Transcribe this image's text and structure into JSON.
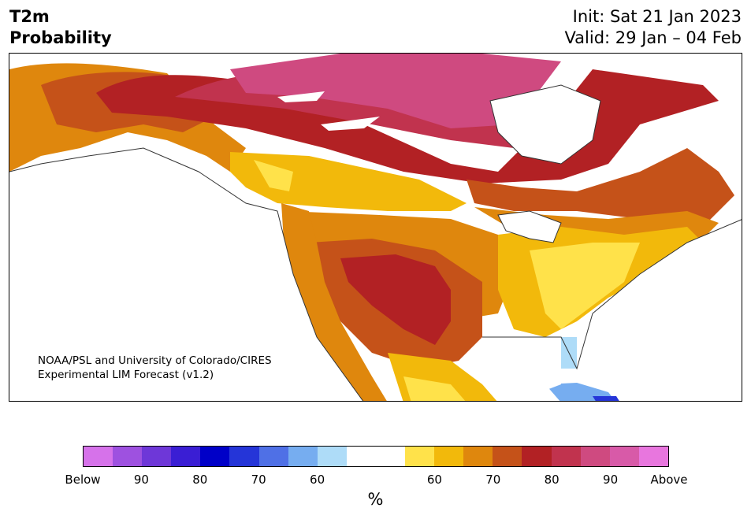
{
  "title": {
    "line1": "T2m",
    "line2": "Probability"
  },
  "dates": {
    "init": "Init: Sat 21 Jan 2023",
    "valid": "Valid: 29 Jan – 04 Feb"
  },
  "credit": {
    "line1": "NOAA/PSL and University of Colorado/CIRES",
    "line2": "Experimental LIM Forecast (v1.2)"
  },
  "colorbar": {
    "unit": "%",
    "colors": [
      "#d672ea",
      "#9e51e0",
      "#6e37d8",
      "#3a1ed4",
      "#0000c8",
      "#2535d8",
      "#4f70e6",
      "#76adf0",
      "#aedcf8",
      "#ffffff",
      "#ffffff",
      "#ffe24a",
      "#f2b90b",
      "#df870d",
      "#c55219",
      "#b22124",
      "#c1334e",
      "#cf4a80",
      "#d85aa8",
      "#e876de"
    ],
    "tick_labels": [
      "Below",
      "90",
      "80",
      "70",
      "60",
      "60",
      "70",
      "80",
      "90",
      "Above"
    ]
  },
  "map": {
    "region": "North America",
    "legend_palette_warm": [
      "#ffe24a",
      "#f2b90b",
      "#df870d",
      "#c55219",
      "#b22124",
      "#c1334e",
      "#cf4a80"
    ],
    "legend_palette_cool": [
      "#aedcf8",
      "#76adf0",
      "#2535d8"
    ]
  }
}
